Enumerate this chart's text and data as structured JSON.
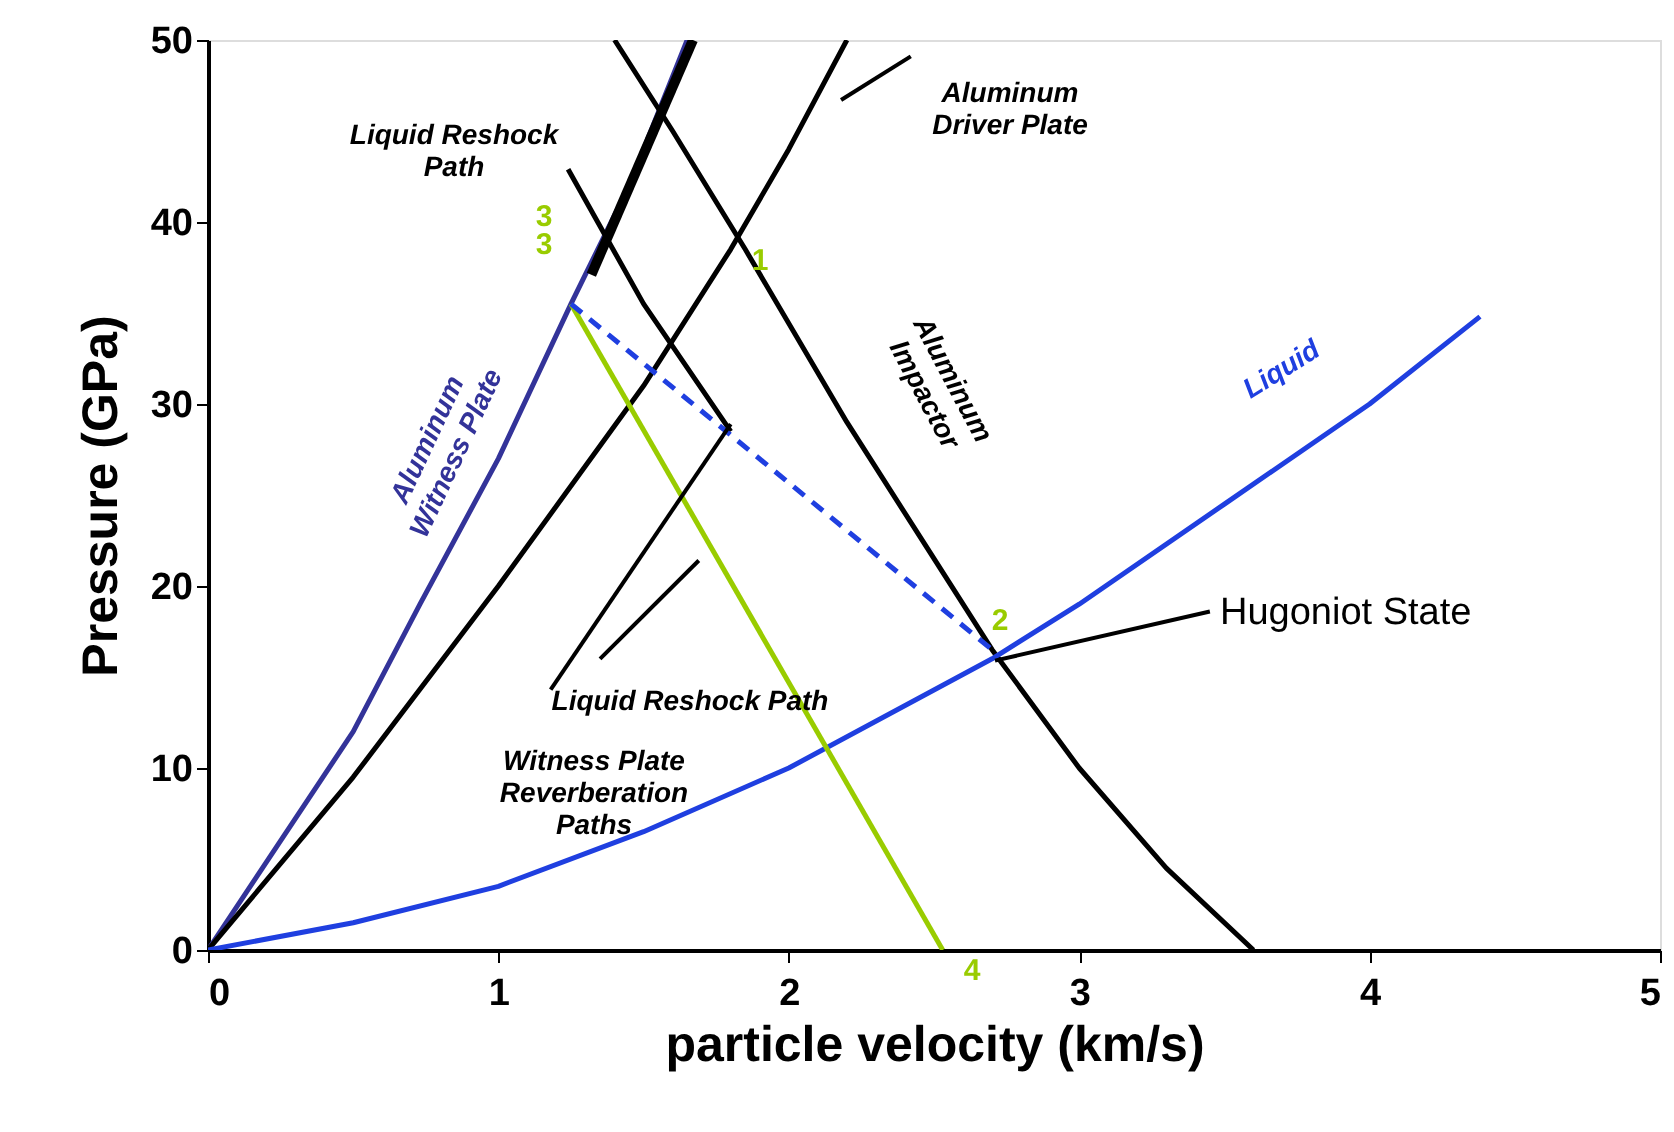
{
  "chart_data": {
    "type": "line",
    "xlabel": "particle velocity (km/s)",
    "ylabel": "Pressure (GPa)",
    "xlim": [
      0,
      5
    ],
    "ylim": [
      0,
      50
    ],
    "xticks": [
      0,
      1,
      2,
      3,
      4,
      5
    ],
    "yticks": [
      0,
      10,
      20,
      30,
      40,
      50
    ],
    "grid": false,
    "marker": "none",
    "series": [
      {
        "color": "#333399",
        "line_style": "solid",
        "x": [
          0,
          0.5,
          0.73,
          1,
          1.25,
          1.45,
          1.65
        ],
        "values": [
          0,
          12,
          19,
          27,
          35.5,
          42,
          50
        ]
      },
      {
        "color": "#000000",
        "line_style": "solid",
        "x": [
          0,
          0.5,
          1,
          1.5,
          1.8,
          2,
          2.2
        ],
        "values": [
          0,
          9.5,
          20,
          31,
          38.5,
          44,
          50
        ]
      },
      {
        "color": "#000000",
        "line_style": "solid",
        "x": [
          1.4,
          1.6,
          1.85,
          2.2,
          2.5,
          2.7,
          3,
          3.3,
          3.6
        ],
        "values": [
          50,
          45,
          38.5,
          29,
          21.5,
          16.5,
          10,
          4.5,
          0
        ]
      },
      {
        "color": "#000000",
        "line_style": "solid",
        "x": [
          1.24,
          1.5,
          1.8
        ],
        "values": [
          42.9,
          35.5,
          28.5
        ]
      },
      {
        "color": "#1f3fe0",
        "line_style": "solid",
        "x": [
          0,
          0.5,
          1,
          1.5,
          2,
          2.7,
          3,
          3.5,
          4,
          4.38
        ],
        "values": [
          0,
          1.5,
          3.5,
          6.5,
          10,
          16,
          19,
          24.5,
          30,
          34.8
        ]
      },
      {
        "color": "#99cc00",
        "line_style": "solid",
        "x": [
          1.25,
          2.53
        ],
        "values": [
          35.5,
          0
        ]
      },
      {
        "color": "#1f3fe0",
        "line_style": "dashed",
        "x": [
          1.25,
          2.7
        ],
        "values": [
          35.5,
          16.5
        ]
      },
      {
        "color": "#000000",
        "line_style": "solid",
        "x": [
          1.67,
          1.32
        ],
        "values": [
          50,
          37.1
        ]
      },
      {
        "color": "#000000",
        "line_style": "solid",
        "x": [
          2.42,
          2.18
        ],
        "values": [
          49.1,
          46.7
        ]
      },
      {
        "color": "#000000",
        "line_style": "solid",
        "x": [
          3.45,
          2.71
        ],
        "values": [
          18.6,
          15.9
        ]
      },
      {
        "color": "#000000",
        "line_style": "solid",
        "x": [
          1.18,
          1.8
        ],
        "values": [
          14.3,
          28.9
        ]
      },
      {
        "color": "#000000",
        "line_style": "solid",
        "x": [
          1.35,
          1.69
        ],
        "values": [
          16,
          21.4
        ]
      }
    ],
    "annotations": [
      "Liquid Reshock\nPath",
      "Aluminum\nDriver  Plate",
      "Aluminum\nImpactor",
      "Aluminum\nWitness  Plate",
      "Liquid",
      "Hugoniot State",
      "Liquid Reshock Path",
      "Witness Plate\nReverberation\nPaths",
      "3",
      "3",
      "1",
      "2",
      "4"
    ]
  }
}
